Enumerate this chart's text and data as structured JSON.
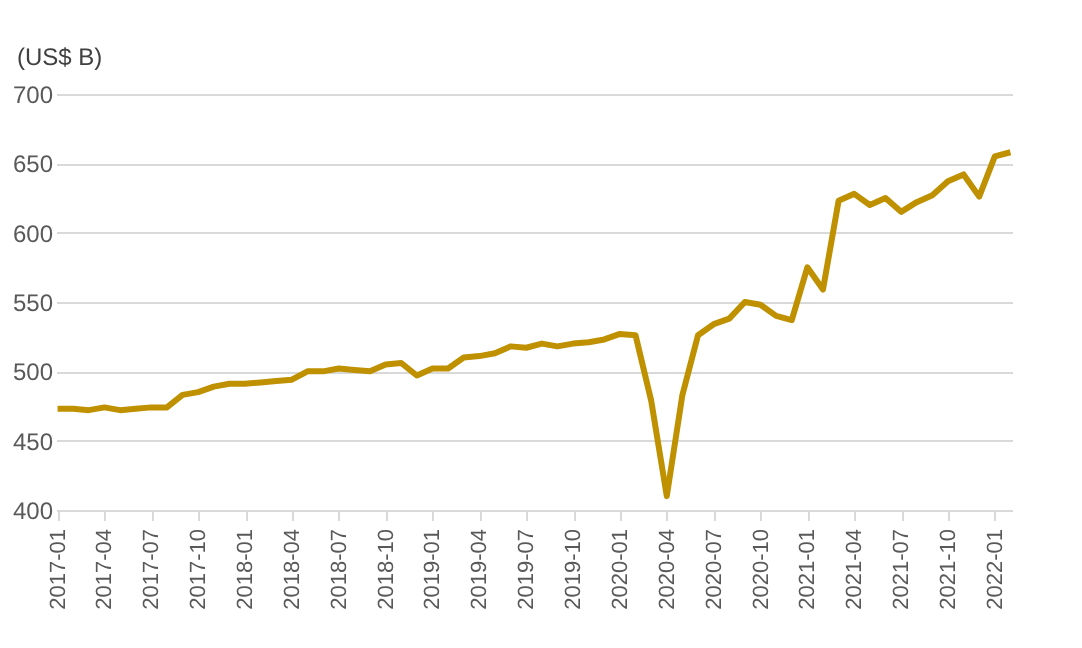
{
  "chart_data": {
    "type": "line",
    "ylabel": "(US$ B)",
    "categories": [
      "2017-01",
      null,
      null,
      "2017-04",
      null,
      null,
      "2017-07",
      null,
      null,
      "2017-10",
      null,
      null,
      "2018-01",
      null,
      null,
      "2018-04",
      null,
      null,
      "2018-07",
      null,
      null,
      "2018-10",
      null,
      null,
      "2019-01",
      null,
      null,
      "2019-04",
      null,
      null,
      "2019-07",
      null,
      null,
      "2019-10",
      null,
      null,
      "2020-01",
      null,
      null,
      "2020-04",
      null,
      null,
      "2020-07",
      null,
      null,
      "2020-10",
      null,
      null,
      "2021-01",
      null,
      null,
      "2021-04",
      null,
      null,
      "2021-07",
      null,
      null,
      "2021-10",
      null,
      null,
      "2022-01",
      null
    ],
    "series": [
      {
        "color": "#bf9000",
        "values": [
          473,
          473,
          472,
          474,
          472,
          473,
          474,
          474,
          483,
          485,
          489,
          491,
          491,
          492,
          493,
          494,
          500,
          500,
          502,
          501,
          500,
          505,
          506,
          497,
          502,
          502,
          510,
          511,
          513,
          518,
          517,
          520,
          518,
          520,
          521,
          523,
          527,
          526,
          479,
          410,
          483,
          526,
          534,
          538,
          550,
          548,
          540,
          537,
          575,
          559,
          623,
          628,
          620,
          625,
          615,
          622,
          627,
          637,
          642,
          626,
          655,
          658
        ]
      }
    ],
    "ylim": [
      400,
      700
    ],
    "yticks": [
      400,
      450,
      500,
      550,
      600,
      650,
      700
    ],
    "grid": "y",
    "line_style": "solid",
    "marker": "none"
  }
}
